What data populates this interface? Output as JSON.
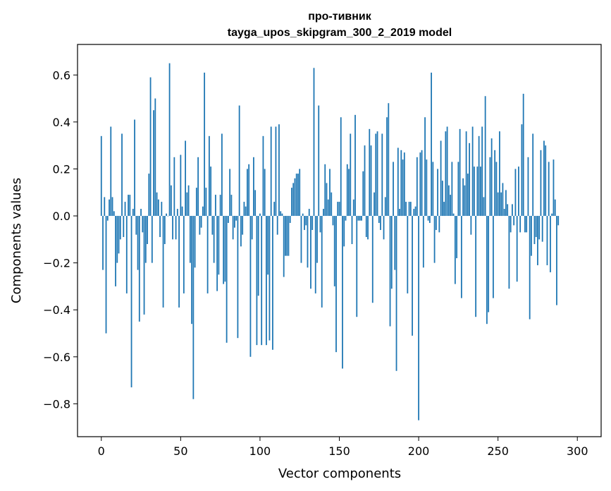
{
  "chart_data": {
    "type": "bar",
    "title": [
      "про-тивник",
      "tayga_upos_skipgram_300_2_2019 model"
    ],
    "xlabel": "Vector components",
    "ylabel": "Components values",
    "xlim": [
      -15,
      315
    ],
    "ylim": [
      -0.94,
      0.73
    ],
    "xticks": [
      0,
      50,
      100,
      150,
      200,
      250,
      300
    ],
    "xtick_labels": [
      "0",
      "50",
      "100",
      "150",
      "200",
      "250",
      "300"
    ],
    "yticks": [
      -0.8,
      -0.6,
      -0.4,
      -0.2,
      0.0,
      0.2,
      0.4,
      0.6
    ],
    "ytick_labels": [
      "−0.8",
      "−0.6",
      "−0.4",
      "−0.2",
      "0.0",
      "0.2",
      "0.4",
      "0.6"
    ],
    "grid": false,
    "bar_color": "#1f77b4",
    "series": [
      {
        "values": [
          0.34,
          -0.23,
          0.08,
          -0.5,
          -0.02,
          0.07,
          0.38,
          0.08,
          0.02,
          -0.3,
          -0.2,
          -0.16,
          -0.1,
          0.35,
          -0.09,
          0.06,
          -0.33,
          0.09,
          0.09,
          -0.73,
          0.03,
          0.41,
          -0.08,
          -0.23,
          -0.45,
          0.03,
          -0.07,
          -0.42,
          -0.2,
          -0.12,
          0.18,
          0.59,
          -0.2,
          0.45,
          0.5,
          0.1,
          0.07,
          -0.09,
          0.06,
          -0.39,
          -0.12,
          0.01,
          0.0,
          0.65,
          0.13,
          -0.1,
          0.25,
          -0.1,
          0.03,
          -0.39,
          0.26,
          0.04,
          -0.33,
          0.32,
          0.1,
          0.13,
          -0.2,
          -0.46,
          -0.78,
          -0.22,
          0.12,
          0.25,
          -0.08,
          -0.05,
          0.04,
          0.61,
          0.12,
          -0.33,
          0.34,
          0.21,
          -0.08,
          -0.2,
          0.09,
          -0.32,
          -0.25,
          0.09,
          0.35,
          -0.29,
          -0.28,
          -0.54,
          -0.03,
          0.2,
          0.09,
          -0.1,
          -0.05,
          -0.02,
          -0.52,
          0.47,
          -0.13,
          -0.08,
          0.06,
          0.04,
          0.2,
          0.22,
          -0.6,
          -0.1,
          0.25,
          0.11,
          -0.55,
          -0.34,
          0.01,
          -0.55,
          0.34,
          0.2,
          -0.55,
          -0.25,
          -0.53,
          0.38,
          -0.57,
          0.06,
          0.38,
          -0.08,
          0.39,
          0.02,
          0.01,
          -0.26,
          -0.17,
          -0.17,
          -0.17,
          -0.03,
          0.12,
          0.14,
          0.16,
          0.18,
          0.18,
          0.2,
          -0.2,
          0.01,
          -0.06,
          -0.04,
          -0.22,
          0.03,
          -0.31,
          -0.06,
          0.63,
          -0.33,
          -0.2,
          0.47,
          -0.07,
          -0.39,
          0.03,
          0.22,
          0.14,
          0.07,
          0.2,
          0.1,
          -0.04,
          -0.3,
          -0.58,
          0.06,
          0.06,
          0.42,
          -0.65,
          -0.13,
          -0.02,
          0.22,
          0.2,
          0.35,
          -0.12,
          0.07,
          0.43,
          -0.43,
          -0.02,
          -0.02,
          -0.02,
          0.19,
          0.3,
          -0.09,
          -0.1,
          0.37,
          0.3,
          -0.37,
          0.1,
          0.35,
          0.36,
          -0.03,
          -0.06,
          0.35,
          -0.1,
          0.08,
          0.42,
          0.48,
          -0.47,
          -0.31,
          0.23,
          -0.23,
          -0.66,
          0.29,
          0.03,
          0.28,
          0.24,
          0.27,
          0.06,
          -0.33,
          0.06,
          0.06,
          -0.51,
          0.03,
          0.04,
          0.25,
          -0.87,
          0.27,
          0.28,
          -0.22,
          0.42,
          0.24,
          -0.02,
          -0.03,
          0.61,
          0.23,
          -0.2,
          -0.06,
          0.2,
          -0.07,
          0.32,
          0.15,
          0.06,
          0.36,
          0.38,
          0.13,
          0.09,
          0.23,
          0.01,
          -0.29,
          -0.18,
          0.23,
          0.37,
          -0.35,
          0.16,
          0.13,
          0.36,
          0.18,
          0.31,
          -0.08,
          0.38,
          0.21,
          -0.43,
          0.21,
          0.34,
          0.21,
          0.38,
          0.08,
          0.51,
          -0.46,
          -0.41,
          0.25,
          0.33,
          -0.35,
          0.28,
          0.23,
          0.1,
          0.36,
          0.1,
          0.14,
          0.03,
          0.11,
          0.05,
          -0.31,
          -0.07,
          0.05,
          -0.04,
          0.2,
          -0.28,
          0.21,
          -0.07,
          0.39,
          0.52,
          -0.07,
          -0.07,
          0.25,
          -0.44,
          -0.17,
          0.35,
          -0.12,
          -0.09,
          -0.21,
          -0.1,
          0.28,
          -0.11,
          0.32,
          0.3,
          -0.21,
          0.23,
          -0.24,
          0.01,
          0.24,
          0.07,
          -0.38,
          -0.04
        ]
      }
    ]
  }
}
